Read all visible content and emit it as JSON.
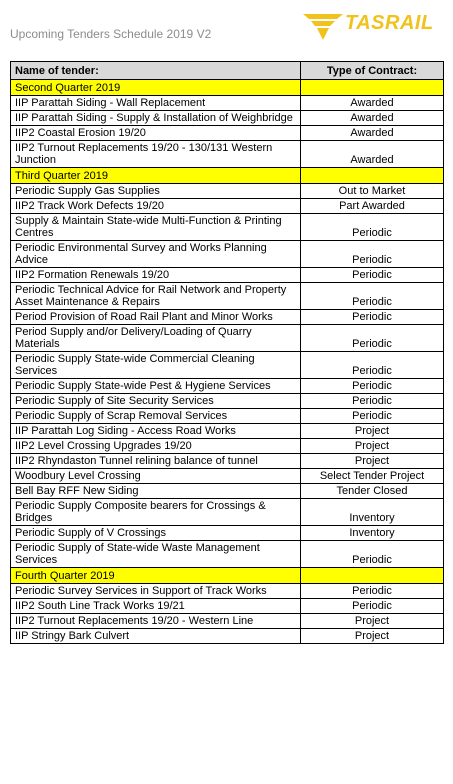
{
  "header": {
    "title": "Upcoming Tenders Schedule 2019 V2",
    "logo_text": "TASRAIL",
    "logo_icon": "tasrail-wing-logo",
    "accent_color": "#f1c21b"
  },
  "table": {
    "col_name_header": "Name of tender:",
    "col_type_header": "Type of Contract:",
    "quarter_color": "#ffff00",
    "header_color": "#d9d9d9",
    "rows": [
      {
        "kind": "quarter",
        "name": "Second Quarter 2019"
      },
      {
        "kind": "item",
        "name": "IIP Parattah Siding - Wall Replacement",
        "type": "Awarded"
      },
      {
        "kind": "item",
        "name": "IIP Parattah Siding - Supply & Installation of Weighbridge",
        "type": "Awarded"
      },
      {
        "kind": "item",
        "name": "IIP2 Coastal Erosion 19/20",
        "type": "Awarded"
      },
      {
        "kind": "item",
        "name": "IIP2 Turnout Replacements 19/20 - 130/131 Western Junction",
        "type": "Awarded"
      },
      {
        "kind": "quarter",
        "name": "Third Quarter 2019"
      },
      {
        "kind": "item",
        "name": "Periodic Supply Gas Supplies",
        "type": "Out to Market"
      },
      {
        "kind": "item",
        "name": "IIP2 Track Work Defects 19/20",
        "type": "Part Awarded"
      },
      {
        "kind": "item",
        "name": "Supply & Maintain State-wide Multi-Function  & Printing Centres",
        "type": "Periodic"
      },
      {
        "kind": "item",
        "name": "Periodic Environmental Survey and Works Planning Advice",
        "type": "Periodic"
      },
      {
        "kind": "item",
        "name": "IIP2 Formation Renewals 19/20",
        "type": "Periodic"
      },
      {
        "kind": "item",
        "name": "Periodic Technical Advice for Rail Network and Property Asset Maintenance & Repairs",
        "type": "Periodic"
      },
      {
        "kind": "item",
        "name": "Period Provision of Road Rail Plant and Minor Works",
        "type": "Periodic"
      },
      {
        "kind": "item",
        "name": "Period Supply and/or Delivery/Loading of Quarry Materials",
        "type": "Periodic"
      },
      {
        "kind": "item",
        "name": "Periodic Supply State-wide Commercial Cleaning Services",
        "type": "Periodic"
      },
      {
        "kind": "item",
        "name": "Periodic Supply State-wide Pest & Hygiene Services",
        "type": "Periodic"
      },
      {
        "kind": "item",
        "name": "Periodic Supply of Site Security Services",
        "type": "Periodic"
      },
      {
        "kind": "item",
        "name": "Periodic Supply of Scrap Removal Services",
        "type": "Periodic"
      },
      {
        "kind": "item",
        "name": "IIP Parattah Log Siding - Access Road Works",
        "type": "Project"
      },
      {
        "kind": "item",
        "name": "IIP2 Level Crossing Upgrades 19/20",
        "type": "Project"
      },
      {
        "kind": "item",
        "name": "IIP2 Rhyndaston Tunnel relining balance of tunnel",
        "type": "Project"
      },
      {
        "kind": "item",
        "name": "Woodbury Level Crossing",
        "type": "Select Tender Project"
      },
      {
        "kind": "item",
        "name": "Bell Bay RFF New Siding",
        "type": "Tender Closed"
      },
      {
        "kind": "item",
        "name": "Periodic Supply Composite bearers for Crossings & Bridges",
        "type": "Inventory"
      },
      {
        "kind": "item",
        "name": "Periodic Supply of V Crossings",
        "type": "Inventory"
      },
      {
        "kind": "item",
        "name": "Periodic Supply of State-wide Waste Management Services",
        "type": "Periodic"
      },
      {
        "kind": "quarter",
        "name": "Fourth Quarter 2019"
      },
      {
        "kind": "item",
        "name": "Periodic Survey Services in Support of Track Works",
        "type": "Periodic"
      },
      {
        "kind": "item",
        "name": "IIP2 South Line Track Works 19/21",
        "type": "Periodic"
      },
      {
        "kind": "item",
        "name": "IIP2 Turnout Replacements 19/20 - Western Line",
        "type": "Project"
      },
      {
        "kind": "item",
        "name": "IIP Stringy Bark Culvert",
        "type": "Project"
      }
    ]
  }
}
